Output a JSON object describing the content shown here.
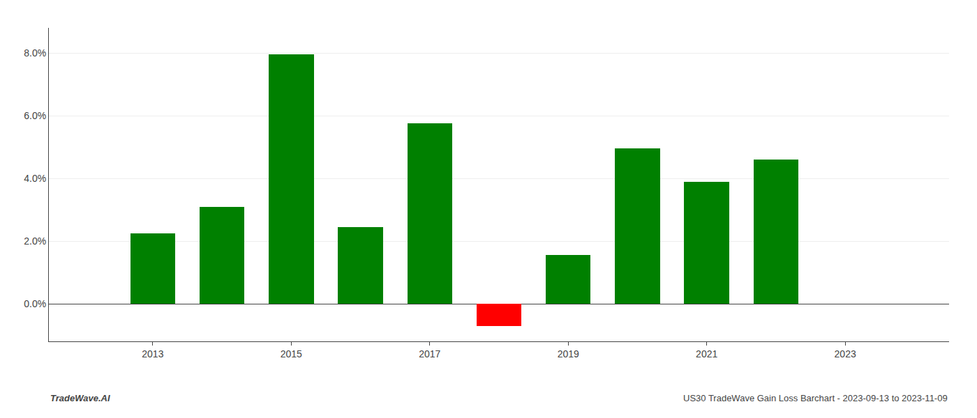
{
  "chart_data": {
    "type": "bar",
    "x": [
      2013,
      2014,
      2015,
      2016,
      2017,
      2018,
      2019,
      2020,
      2021,
      2022
    ],
    "values": [
      0.0225,
      0.031,
      0.0795,
      0.0245,
      0.0575,
      -0.007,
      0.0155,
      0.0495,
      0.039,
      0.046
    ],
    "colors": [
      "#008000",
      "#008000",
      "#008000",
      "#008000",
      "#008000",
      "#ff0000",
      "#008000",
      "#008000",
      "#008000",
      "#008000"
    ],
    "xlim": [
      2011.5,
      2024.5
    ],
    "xticks": [
      2013,
      2015,
      2017,
      2019,
      2021,
      2023
    ],
    "ylim": [
      -0.012,
      0.088
    ],
    "yticks": [
      {
        "value": 0.0,
        "label": "0.0%"
      },
      {
        "value": 0.02,
        "label": "2.0%"
      },
      {
        "value": 0.04,
        "label": "4.0%"
      },
      {
        "value": 0.06,
        "label": "6.0%"
      },
      {
        "value": 0.08,
        "label": "8.0%"
      }
    ],
    "grid": true,
    "annotations": [
      "TradeWave.AI",
      "US30 TradeWave Gain Loss Barchart - 2023-09-13 to 2023-11-09"
    ]
  }
}
